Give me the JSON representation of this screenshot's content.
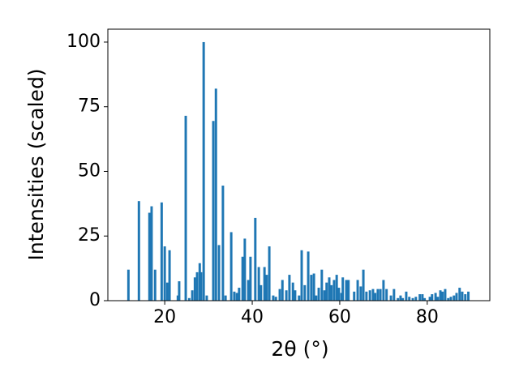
{
  "chart_data": {
    "type": "bar",
    "xlabel": "2θ (°)",
    "ylabel": "Intensities (scaled)",
    "color": "#1f77b4",
    "xlim": [
      7,
      94.3
    ],
    "ylim": [
      0,
      105
    ],
    "xticks": [
      20,
      40,
      60,
      80
    ],
    "yticks": [
      0,
      25,
      50,
      75,
      100
    ],
    "x": [
      11.7,
      14.1,
      16.5,
      17.0,
      17.8,
      19.3,
      20.0,
      20.6,
      21.1,
      23.0,
      23.3,
      24.8,
      25.6,
      26.3,
      26.9,
      27.4,
      28.0,
      28.3,
      28.9,
      29.6,
      31.1,
      31.7,
      32.4,
      33.3,
      33.9,
      35.2,
      35.9,
      36.5,
      37.0,
      37.8,
      38.3,
      39.1,
      39.6,
      40.7,
      41.5,
      42.0,
      42.8,
      43.3,
      43.9,
      44.8,
      45.4,
      46.3,
      46.9,
      47.8,
      48.5,
      49.3,
      49.8,
      50.7,
      51.3,
      52.0,
      52.8,
      53.5,
      54.1,
      54.6,
      55.2,
      55.9,
      56.5,
      57.0,
      57.6,
      58.1,
      58.7,
      59.3,
      59.8,
      60.4,
      60.7,
      61.5,
      62.0,
      63.3,
      64.1,
      64.8,
      65.4,
      66.1,
      66.9,
      67.6,
      68.1,
      68.7,
      69.3,
      70.0,
      70.7,
      71.7,
      72.4,
      73.3,
      73.9,
      74.4,
      75.2,
      75.9,
      76.7,
      77.4,
      78.3,
      78.9,
      79.4,
      80.6,
      81.1,
      81.9,
      82.4,
      83.0,
      83.5,
      84.1,
      84.8,
      85.4,
      86.1,
      86.7,
      87.4,
      88.0,
      88.7,
      89.4
    ],
    "values": [
      12,
      38.5,
      34,
      36.5,
      12,
      38,
      21,
      7,
      19.5,
      2,
      7.5,
      71.5,
      1,
      4,
      9,
      11,
      14.5,
      11,
      100,
      2,
      69.5,
      82,
      21.5,
      44.5,
      2,
      26.5,
      3.5,
      3,
      5,
      17,
      24,
      8,
      17,
      32,
      13,
      6,
      13,
      10,
      21,
      2,
      1.5,
      4.5,
      8,
      4,
      10,
      7,
      4,
      2,
      19.5,
      6,
      19,
      10,
      10.5,
      2,
      5,
      12,
      4,
      7,
      9,
      6,
      8,
      10,
      5,
      3,
      9,
      8,
      8,
      3.5,
      8,
      5.5,
      12,
      3.5,
      4,
      4.5,
      3,
      4.5,
      4.5,
      8,
      4.5,
      2,
      4.5,
      1,
      2,
      1,
      3.5,
      1.5,
      1,
      1.5,
      2.5,
      2.5,
      1,
      1.5,
      2.5,
      3,
      1.5,
      4,
      3.5,
      4.5,
      1,
      1.5,
      2,
      3,
      5,
      3.5,
      2.5,
      3.5
    ]
  }
}
